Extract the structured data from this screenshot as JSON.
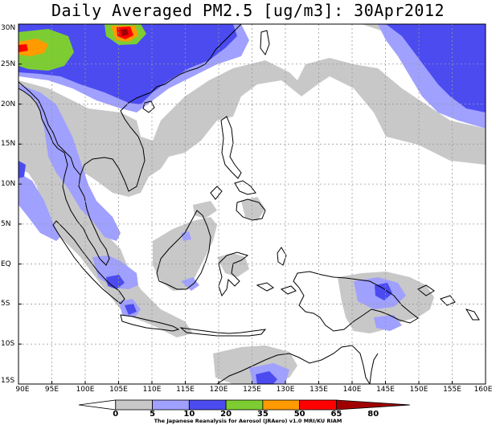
{
  "title": "Daily Averaged PM2.5 [ug/m3]: 30Apr2012",
  "map": {
    "lon_range": [
      90,
      160
    ],
    "lat_range": [
      -15,
      30
    ],
    "lat_labels": [
      "30N",
      "25N",
      "20N",
      "15N",
      "10N",
      "5N",
      "EQ",
      "5S",
      "10S",
      "15S"
    ],
    "lon_labels": [
      "90E",
      "95E",
      "100E",
      "105E",
      "110E",
      "115E",
      "120E",
      "125E",
      "130E",
      "135E",
      "140E",
      "145E",
      "150E",
      "155E",
      "160E"
    ]
  },
  "colorbar": {
    "ticks": [
      "0",
      "5",
      "10",
      "20",
      "35",
      "50",
      "65",
      "80"
    ],
    "colors": [
      "#ffffff",
      "#c8c8c8",
      "#a0a0ff",
      "#4b4bf0",
      "#7dcd32",
      "#ff9a00",
      "#ff0000",
      "#a00000"
    ]
  },
  "credit": "The Japanese Reanalysis for Aerosol (JRAero) v1.0 MRI/KU RIAM"
}
